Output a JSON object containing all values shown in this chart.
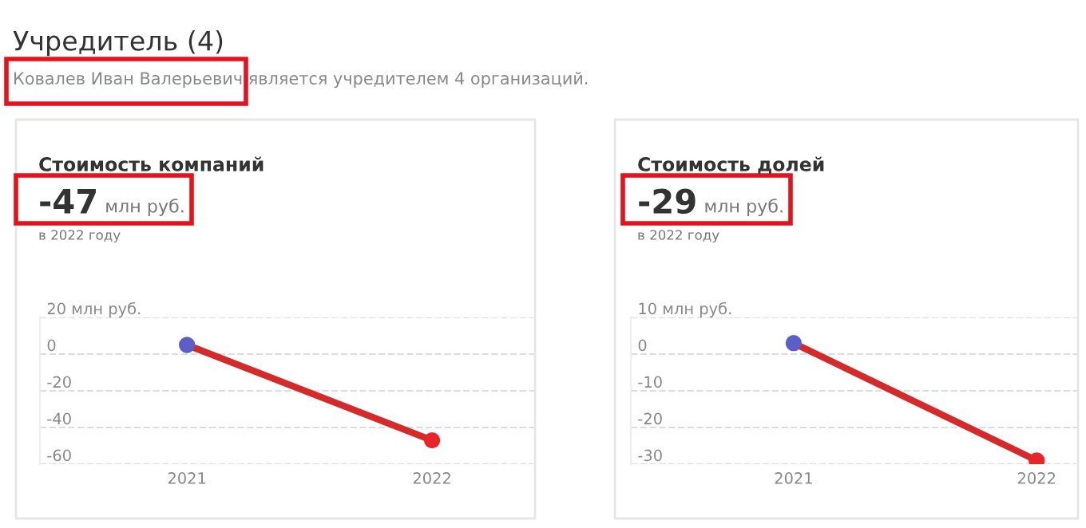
{
  "chart_data": [
    {
      "type": "line",
      "title": "Стоимость компаний",
      "subtitle": "-47 млн руб.",
      "annotations": [
        "Учредитель (4)",
        "Ковалев Иван Валерьевич является учредителем 4 организаций.",
        "в 2022 году"
      ],
      "categories": [
        "2021",
        "2022"
      ],
      "series": [
        {
          "color": "#d42a2a",
          "colors": [
            "#5b5fc7",
            "#e8262a"
          ],
          "values": [
            5,
            -47
          ]
        }
      ],
      "ylim": [
        -60,
        20
      ],
      "yticks": [
        {
          "value": 20,
          "label": "20 млн руб."
        },
        0,
        -20,
        -40,
        -60
      ],
      "grid": "y",
      "marker": "circle",
      "line_style": "solid"
    },
    {
      "type": "line",
      "title": "Стоимость долей",
      "subtitle": "-29 млн руб.",
      "annotations": [
        "в 2022 году"
      ],
      "categories": [
        "2021",
        "2022"
      ],
      "series": [
        {
          "color": "#d42a2a",
          "colors": [
            "#5b5fc7",
            "#e8262a"
          ],
          "values": [
            3,
            -29
          ]
        }
      ],
      "ylim": [
        -30,
        10
      ],
      "yticks": [
        {
          "value": 10,
          "label": "10 млн руб."
        },
        0,
        -10,
        -20,
        -30
      ],
      "grid": "y",
      "marker": "circle",
      "line_style": "solid"
    }
  ]
}
